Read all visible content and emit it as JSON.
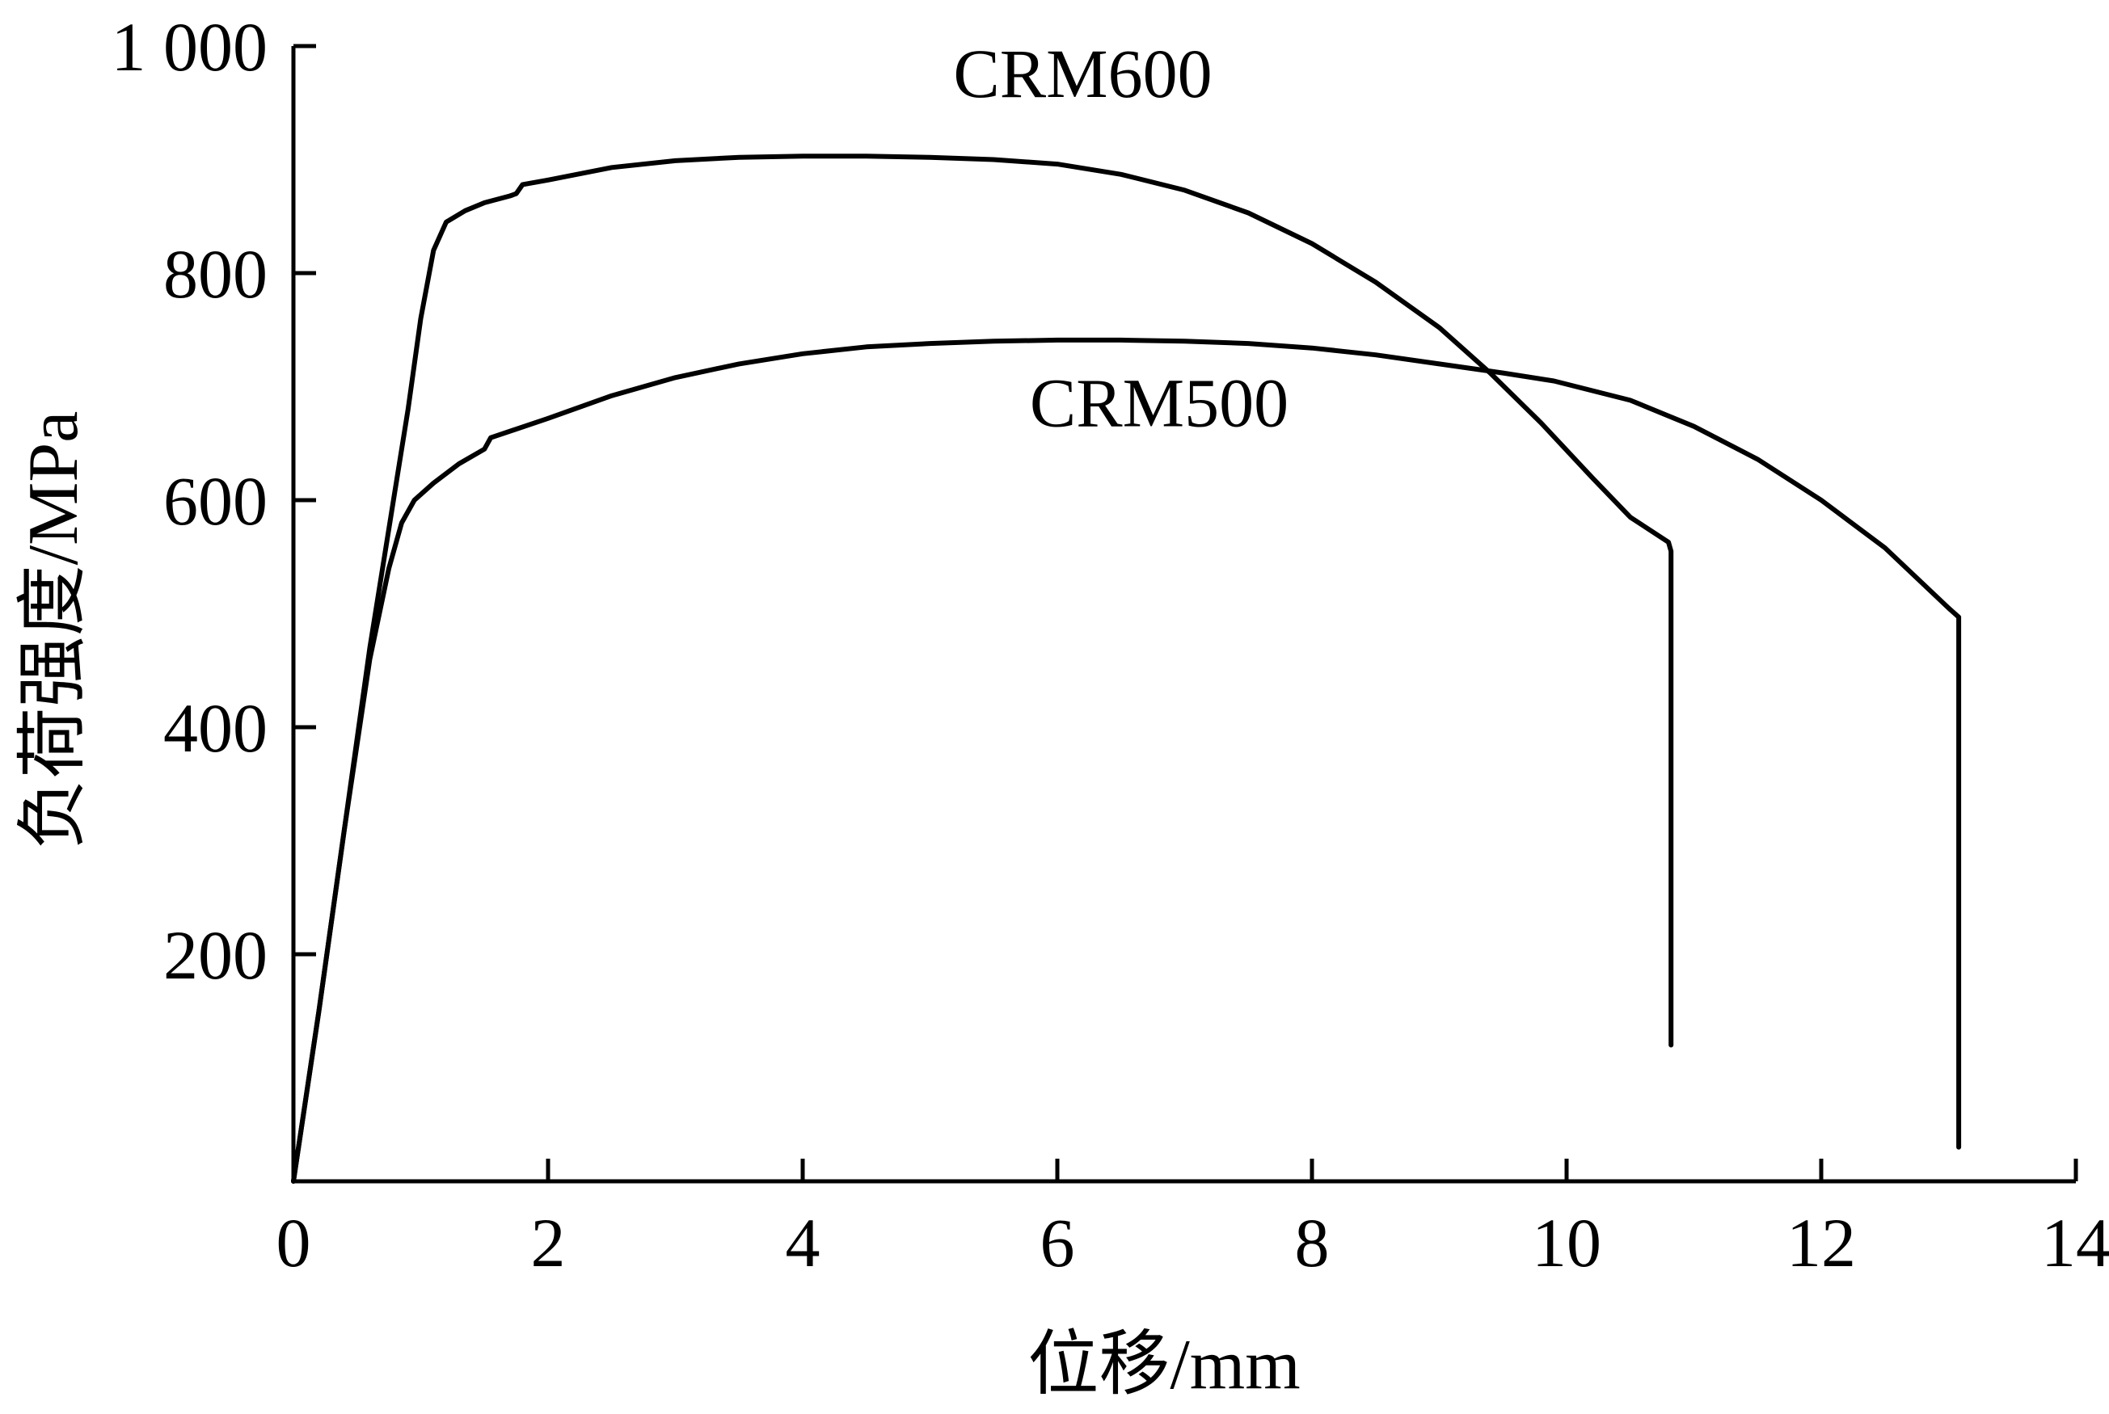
{
  "chart_data": {
    "type": "line",
    "title": "",
    "xlabel": "位移/mm",
    "ylabel": "负荷强度/MPa",
    "xlim": [
      0,
      14
    ],
    "ylim": [
      0,
      1000
    ],
    "x_ticks": [
      0,
      2,
      4,
      6,
      8,
      10,
      12,
      14
    ],
    "x_tick_labels": [
      "0",
      "2",
      "4",
      "6",
      "8",
      "10",
      "12",
      "14"
    ],
    "y_ticks": [
      200,
      400,
      600,
      800,
      1000
    ],
    "y_tick_labels": [
      "200",
      "400",
      "600",
      "800",
      "1 000"
    ],
    "grid": false,
    "legend": "none",
    "series": [
      {
        "name": "CRM600",
        "x": [
          0,
          0.2,
          0.4,
          0.6,
          0.8,
          0.9,
          1.0,
          1.1,
          1.2,
          1.35,
          1.5,
          1.7,
          1.75,
          1.8,
          2.0,
          2.5,
          3.0,
          3.5,
          4.0,
          4.5,
          5.0,
          5.5,
          6.0,
          6.5,
          7.0,
          7.5,
          8.0,
          8.5,
          9.0,
          9.4,
          9.8,
          10.2,
          10.5,
          10.8,
          10.82,
          10.82
        ],
        "y": [
          0,
          150,
          310,
          470,
          610,
          680,
          760,
          820,
          845,
          855,
          862,
          868,
          870,
          878,
          882,
          893,
          899,
          902,
          903,
          903,
          902,
          900,
          896,
          887,
          873,
          853,
          826,
          792,
          752,
          712,
          668,
          620,
          585,
          563,
          555,
          120
        ]
      },
      {
        "name": "CRM500",
        "x": [
          0,
          0.2,
          0.4,
          0.6,
          0.75,
          0.85,
          0.95,
          1.1,
          1.3,
          1.5,
          1.55,
          2.0,
          2.5,
          3.0,
          3.5,
          4.0,
          4.5,
          5.0,
          5.5,
          6.0,
          6.5,
          7.0,
          7.5,
          8.0,
          8.5,
          9.0,
          9.5,
          9.9,
          10.5,
          11.0,
          11.5,
          12.0,
          12.5,
          13.0,
          13.08,
          13.08
        ],
        "y": [
          0,
          150,
          310,
          460,
          540,
          580,
          600,
          615,
          632,
          645,
          655,
          672,
          692,
          708,
          720,
          729,
          735,
          738,
          740,
          741,
          741,
          740,
          738,
          734,
          728,
          720,
          712,
          705,
          688,
          665,
          636,
          600,
          558,
          505,
          497,
          30
        ]
      }
    ],
    "annotations": [
      {
        "text": "CRM600",
        "x": 6.2,
        "y": 955
      },
      {
        "text": "CRM500",
        "x": 6.8,
        "y": 665
      }
    ]
  }
}
